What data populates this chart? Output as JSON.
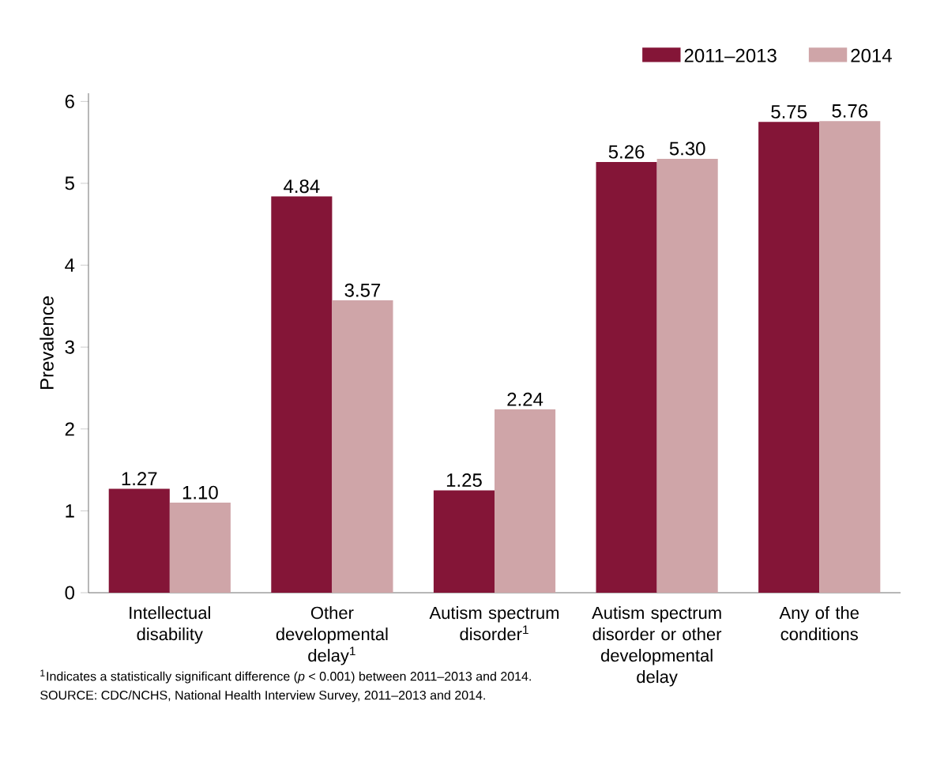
{
  "chart_data": {
    "type": "bar",
    "ylabel": "Prevalence",
    "categories": [
      "Intellectual disability",
      "Other developmental delay$^{1}$",
      "Autism spectrum disorder$^{1}$",
      "Autism spectrum disorder or other developmental delay",
      "Any of the conditions"
    ],
    "series": [
      {
        "name": "2011–2013",
        "color": "#841537",
        "values": [
          1.27,
          4.84,
          1.25,
          5.26,
          5.75
        ],
        "value_labels": [
          "1.27",
          "4.84",
          "1.25",
          "5.26",
          "5.75"
        ]
      },
      {
        "name": "2014",
        "color": "#cfa5a8",
        "values": [
          1.1,
          3.57,
          2.24,
          5.3,
          5.76
        ],
        "value_labels": [
          "1.10",
          "3.57",
          "2.24",
          "5.30",
          "5.76"
        ]
      }
    ],
    "ylim": [
      0,
      6.1
    ],
    "yticks": [
      0,
      1,
      2,
      3,
      4,
      5,
      6
    ],
    "grid": false,
    "legend": "top right",
    "annotations": [
      "$^{1}$Indicates a statistically significant difference (*p* < 0.001) between 2011–2013 and 2014.",
      "SOURCE: CDC/NCHS, National Health Interview Survey, 2011–2013 and 2014."
    ]
  }
}
